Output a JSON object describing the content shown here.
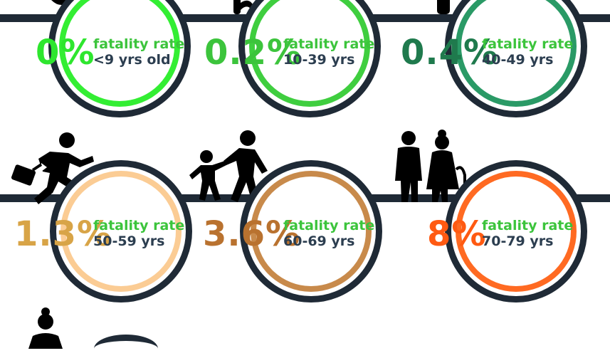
{
  "stats": [
    {
      "percent": "0%",
      "label": "fatality rate",
      "age": "<9 yrs old",
      "color": "#2ee62e",
      "ring": "#33ee33"
    },
    {
      "percent": "0.2%",
      "label": "fatality rate",
      "age": "10-39 yrs",
      "color": "#3cc43c",
      "ring": "#3fce3f"
    },
    {
      "percent": "0.4%",
      "label": "fatality rate",
      "age": "40-49 yrs",
      "color": "#1f7a4d",
      "ring": "#2a9a66"
    },
    {
      "percent": "1.3%",
      "label": "fatality rate",
      "age": "50-59 yrs",
      "color": "#d8a447",
      "ring": "#fbcc94"
    },
    {
      "percent": "3.6%",
      "label": "fatality rate",
      "age": "60-69 yrs",
      "color": "#b9722f",
      "ring": "#c88a4b"
    },
    {
      "percent": "8%",
      "label": "fatality rate",
      "age": "70-79 yrs",
      "color": "#ff5a12",
      "ring": "#ff6a22"
    }
  ],
  "colors": {
    "band": "#1f2a36",
    "text": "#2c3e50",
    "label_green": "#3cc43c"
  },
  "icons": [
    "person-icon",
    "person-icon",
    "person-icon",
    "running-businessman-icon",
    "parent-child-icon",
    "elderly-couple-icon",
    "elderly-woman-icon"
  ]
}
